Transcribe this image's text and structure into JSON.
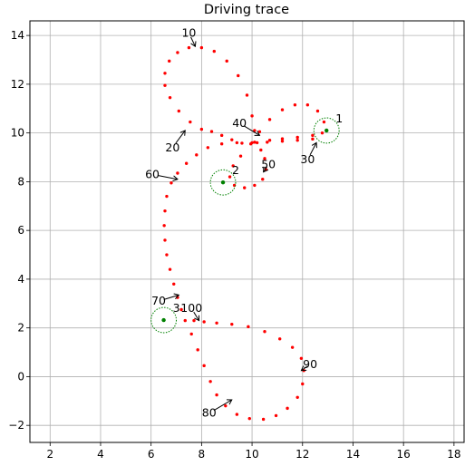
{
  "chart_data": {
    "type": "scatter",
    "title": "Driving trace",
    "xlabel": "",
    "ylabel": "",
    "xlim": [
      1.2,
      18.4
    ],
    "ylim": [
      -2.7,
      14.6
    ],
    "grid": true,
    "x_ticks": [
      2,
      4,
      6,
      8,
      10,
      12,
      14,
      16,
      18
    ],
    "y_ticks": [
      -2,
      0,
      2,
      4,
      6,
      8,
      10,
      12,
      14
    ],
    "trace_color": "#ff0000",
    "trace": [
      [
        12.95,
        10.1
      ],
      [
        12.4,
        9.9
      ],
      [
        11.8,
        9.82
      ],
      [
        11.2,
        9.76
      ],
      [
        10.7,
        9.7
      ],
      [
        10.1,
        9.62
      ],
      [
        9.6,
        9.58
      ],
      [
        9.2,
        9.72
      ],
      [
        8.8,
        9.9
      ],
      [
        8.4,
        10.06
      ],
      [
        8.0,
        10.15
      ],
      [
        7.55,
        10.45
      ],
      [
        7.1,
        10.9
      ],
      [
        6.75,
        11.45
      ],
      [
        6.55,
        11.95
      ],
      [
        6.55,
        12.45
      ],
      [
        6.72,
        12.95
      ],
      [
        7.05,
        13.3
      ],
      [
        7.5,
        13.5
      ],
      [
        8.0,
        13.5
      ],
      [
        8.5,
        13.35
      ],
      [
        9.0,
        12.95
      ],
      [
        9.45,
        12.35
      ],
      [
        9.8,
        11.55
      ],
      [
        10.0,
        10.7
      ],
      [
        10.1,
        10.1
      ],
      [
        10.2,
        9.6
      ],
      [
        10.35,
        9.3
      ],
      [
        10.5,
        8.95
      ],
      [
        10.55,
        8.5
      ],
      [
        10.42,
        8.1
      ],
      [
        10.1,
        7.85
      ],
      [
        9.7,
        7.75
      ],
      [
        9.3,
        7.85
      ],
      [
        9.12,
        8.2
      ],
      [
        9.25,
        8.65
      ],
      [
        9.55,
        9.05
      ],
      [
        9.95,
        9.55
      ],
      [
        10.3,
        10.05
      ],
      [
        10.7,
        10.55
      ],
      [
        11.2,
        10.95
      ],
      [
        11.7,
        11.15
      ],
      [
        12.2,
        11.15
      ],
      [
        12.6,
        10.9
      ],
      [
        12.85,
        10.45
      ],
      [
        12.78,
        10.0
      ],
      [
        12.4,
        9.75
      ],
      [
        11.8,
        9.7
      ],
      [
        11.2,
        9.66
      ],
      [
        10.6,
        9.62
      ],
      [
        10.0,
        9.6
      ],
      [
        9.4,
        9.6
      ],
      [
        8.8,
        9.55
      ],
      [
        8.25,
        9.4
      ],
      [
        7.8,
        9.1
      ],
      [
        7.4,
        8.75
      ],
      [
        7.05,
        8.35
      ],
      [
        6.8,
        7.95
      ],
      [
        6.62,
        7.4
      ],
      [
        6.55,
        6.8
      ],
      [
        6.52,
        6.2
      ],
      [
        6.55,
        5.6
      ],
      [
        6.62,
        5.0
      ],
      [
        6.75,
        4.4
      ],
      [
        6.9,
        3.8
      ],
      [
        7.05,
        3.25
      ],
      [
        7.2,
        2.75
      ],
      [
        7.35,
        2.3
      ],
      [
        7.6,
        1.75
      ],
      [
        7.85,
        1.1
      ],
      [
        8.1,
        0.45
      ],
      [
        8.35,
        -0.2
      ],
      [
        8.6,
        -0.75
      ],
      [
        8.95,
        -1.2
      ],
      [
        9.4,
        -1.55
      ],
      [
        9.9,
        -1.72
      ],
      [
        10.45,
        -1.75
      ],
      [
        10.95,
        -1.6
      ],
      [
        11.4,
        -1.3
      ],
      [
        11.8,
        -0.85
      ],
      [
        12.0,
        -0.3
      ],
      [
        12.05,
        0.25
      ],
      [
        11.95,
        0.75
      ],
      [
        11.6,
        1.2
      ],
      [
        11.1,
        1.55
      ],
      [
        10.5,
        1.85
      ],
      [
        9.85,
        2.05
      ],
      [
        9.2,
        2.15
      ],
      [
        8.6,
        2.2
      ],
      [
        8.1,
        2.25
      ],
      [
        7.7,
        2.3
      ]
    ],
    "waypoints": [
      {
        "label": "1",
        "x": 12.95,
        "y": 10.1
      },
      {
        "label": "2",
        "x": 8.85,
        "y": 7.97
      },
      {
        "label": "3",
        "x": 6.5,
        "y": 2.32
      }
    ],
    "waypoint_color": "#008000",
    "waypoint_radius": 0.5,
    "annotations": [
      {
        "label": "10",
        "x": 7.75,
        "y": 13.55,
        "tx": 7.5,
        "ty": 14.1
      },
      {
        "label": "20",
        "x": 7.35,
        "y": 10.1,
        "tx": 6.85,
        "ty": 9.4
      },
      {
        "label": "30",
        "x": 12.55,
        "y": 9.6,
        "tx": 12.2,
        "ty": 8.9
      },
      {
        "label": "40",
        "x": 10.3,
        "y": 9.9,
        "tx": 9.5,
        "ty": 10.4
      },
      {
        "label": "50",
        "x": 10.45,
        "y": 8.4,
        "tx": 10.65,
        "ty": 8.7
      },
      {
        "label": "60",
        "x": 7.05,
        "y": 8.1,
        "tx": 6.05,
        "ty": 8.3
      },
      {
        "label": "70",
        "x": 7.1,
        "y": 3.35,
        "tx": 6.3,
        "ty": 3.1
      },
      {
        "label": "80",
        "x": 9.2,
        "y": -0.95,
        "tx": 8.3,
        "ty": -1.5
      },
      {
        "label": "90",
        "x": 11.95,
        "y": 0.25,
        "tx": 12.3,
        "ty": 0.5
      },
      {
        "label": "100",
        "x": 7.9,
        "y": 2.3,
        "tx": 7.6,
        "ty": 2.8
      }
    ]
  }
}
